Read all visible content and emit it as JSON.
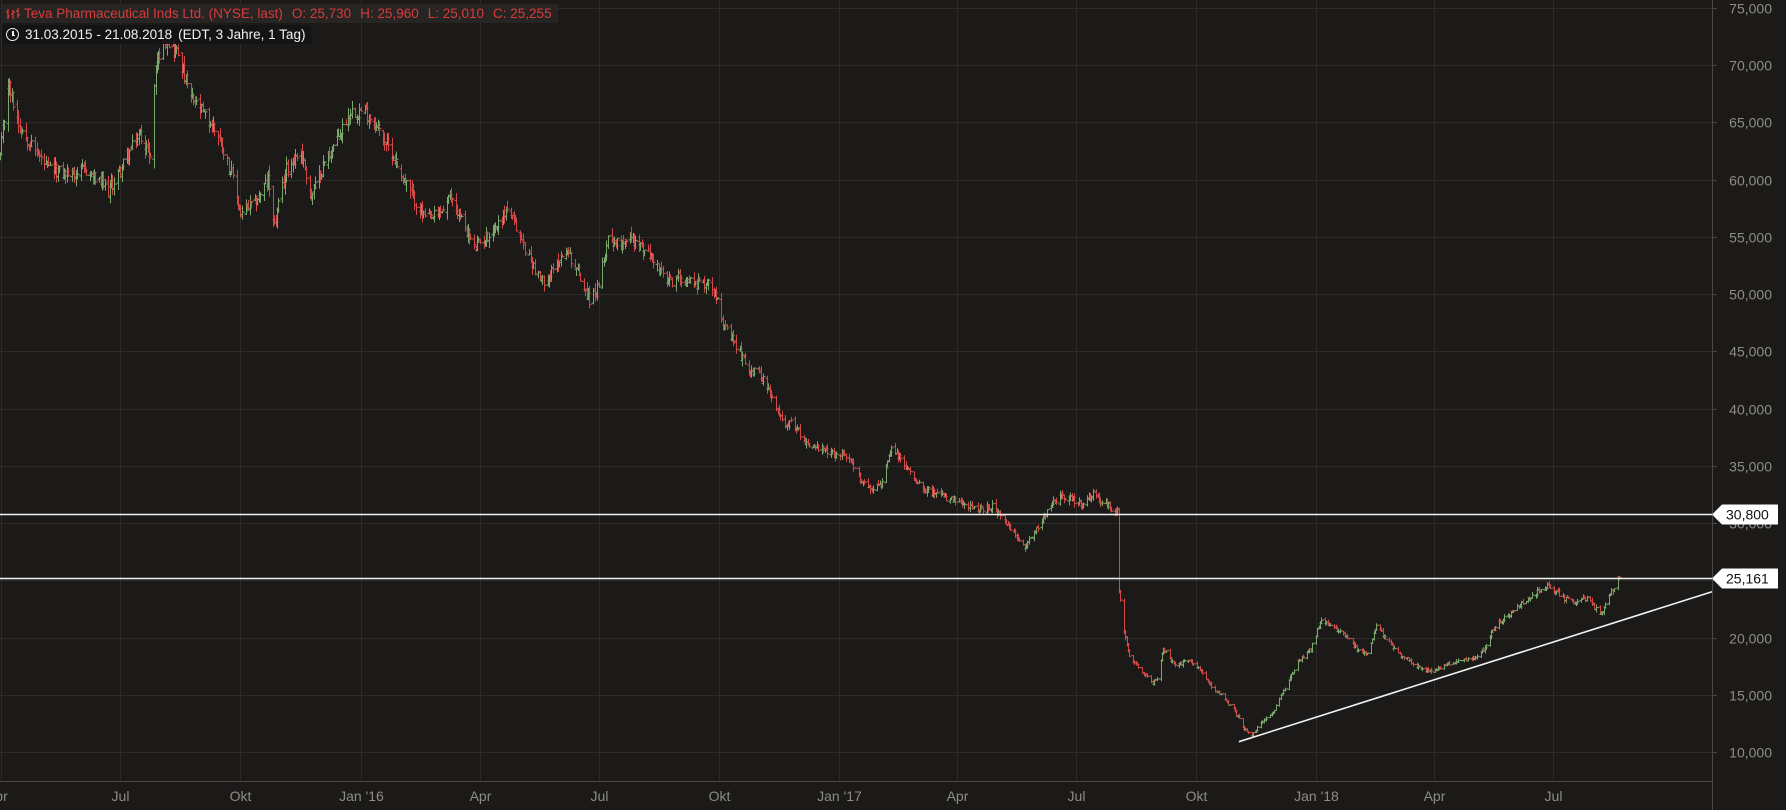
{
  "header": {
    "instrument": "Teva Pharmaceutical Inds Ltd. (NYSE, last)",
    "open": "O: 25,730",
    "high": "H: 25,960",
    "low": "L: 25,010",
    "close": "C: 25,255",
    "date_range": "31.03.2015 - 21.08.2018",
    "settings": "(EDT, 3 Jahre, 1 Tag)",
    "icon": "ohlc-bars-icon"
  },
  "colors": {
    "background": "#1b1a19",
    "grid": "#2c2b29",
    "axis_text": "#8e8c88",
    "up": "#7aa86c",
    "down": "#d04848",
    "header_text": "#d83b3b",
    "lines": "#f2f2f2"
  },
  "chart_data": {
    "type": "ohlc",
    "title": "Teva Pharmaceutical Inds Ltd. (NYSE, last)",
    "x_range": [
      "2015-03-31",
      "2018-08-21"
    ],
    "y_range": [
      5000,
      75000
    ],
    "y_ticks": [
      "10,000",
      "15,000",
      "20,000",
      "25,000",
      "30,000",
      "35,000",
      "40,000",
      "45,000",
      "50,000",
      "55,000",
      "60,000",
      "65,000",
      "70,000",
      "75,000"
    ],
    "x_ticks": [
      {
        "date": "2015-04-01",
        "label": "pr"
      },
      {
        "date": "2015-07-01",
        "label": "Jul"
      },
      {
        "date": "2015-10-01",
        "label": "Okt"
      },
      {
        "date": "2016-01-01",
        "label": "Jan '16"
      },
      {
        "date": "2016-04-01",
        "label": "Apr"
      },
      {
        "date": "2016-07-01",
        "label": "Jul"
      },
      {
        "date": "2016-10-01",
        "label": "Okt"
      },
      {
        "date": "2017-01-01",
        "label": "Jan '17"
      },
      {
        "date": "2017-04-01",
        "label": "Apr"
      },
      {
        "date": "2017-07-01",
        "label": "Jul"
      },
      {
        "date": "2017-10-01",
        "label": "Okt"
      },
      {
        "date": "2018-01-01",
        "label": "Jan '18"
      },
      {
        "date": "2018-04-01",
        "label": "Apr"
      },
      {
        "date": "2018-07-01",
        "label": "Jul"
      }
    ],
    "grid": true,
    "price_path": [
      [
        "2015-03-31",
        62.0
      ],
      [
        "2015-04-06",
        68.5
      ],
      [
        "2015-04-14",
        65.0
      ],
      [
        "2015-04-24",
        63.0
      ],
      [
        "2015-05-06",
        61.0
      ],
      [
        "2015-05-20",
        60.5
      ],
      [
        "2015-06-05",
        60.8
      ],
      [
        "2015-06-22",
        59.0
      ],
      [
        "2015-07-06",
        62.0
      ],
      [
        "2015-07-16",
        64.0
      ],
      [
        "2015-07-24",
        62.0
      ],
      [
        "2015-07-28",
        70.0
      ],
      [
        "2015-08-04",
        72.5
      ],
      [
        "2015-08-14",
        71.0
      ],
      [
        "2015-08-24",
        67.0
      ],
      [
        "2015-09-01",
        66.0
      ],
      [
        "2015-09-14",
        64.0
      ],
      [
        "2015-09-24",
        60.5
      ],
      [
        "2015-10-01",
        57.0
      ],
      [
        "2015-10-12",
        58.0
      ],
      [
        "2015-10-22",
        60.0
      ],
      [
        "2015-10-27",
        56.0
      ],
      [
        "2015-11-05",
        61.0
      ],
      [
        "2015-11-16",
        62.5
      ],
      [
        "2015-11-24",
        58.5
      ],
      [
        "2015-12-04",
        61.5
      ],
      [
        "2015-12-14",
        63.5
      ],
      [
        "2015-12-24",
        66.0
      ],
      [
        "2016-01-04",
        66.0
      ],
      [
        "2016-01-14",
        64.5
      ],
      [
        "2016-01-26",
        62.0
      ],
      [
        "2016-02-03",
        60.0
      ],
      [
        "2016-02-12",
        58.0
      ],
      [
        "2016-02-20",
        56.5
      ],
      [
        "2016-03-01",
        57.0
      ],
      [
        "2016-03-10",
        58.5
      ],
      [
        "2016-03-18",
        56.5
      ],
      [
        "2016-03-28",
        54.0
      ],
      [
        "2016-04-06",
        55.0
      ],
      [
        "2016-04-14",
        56.0
      ],
      [
        "2016-04-22",
        57.5
      ],
      [
        "2016-05-02",
        55.0
      ],
      [
        "2016-05-10",
        53.0
      ],
      [
        "2016-05-18",
        51.0
      ],
      [
        "2016-05-27",
        52.0
      ],
      [
        "2016-06-06",
        54.0
      ],
      [
        "2016-06-15",
        52.0
      ],
      [
        "2016-06-24",
        49.5
      ],
      [
        "2016-07-01",
        50.5
      ],
      [
        "2016-07-08",
        55.0
      ],
      [
        "2016-07-15",
        54.5
      ],
      [
        "2016-07-25",
        55.0
      ],
      [
        "2016-08-03",
        54.0
      ],
      [
        "2016-08-12",
        53.0
      ],
      [
        "2016-08-22",
        51.0
      ],
      [
        "2016-09-01",
        51.5
      ],
      [
        "2016-09-12",
        51.0
      ],
      [
        "2016-09-22",
        51.0
      ],
      [
        "2016-09-30",
        50.0
      ],
      [
        "2016-10-05",
        47.0
      ],
      [
        "2016-10-14",
        45.5
      ],
      [
        "2016-10-24",
        43.5
      ],
      [
        "2016-11-02",
        43.0
      ],
      [
        "2016-11-10",
        41.0
      ],
      [
        "2016-11-18",
        39.0
      ],
      [
        "2016-11-28",
        38.5
      ],
      [
        "2016-12-07",
        37.0
      ],
      [
        "2016-12-16",
        36.5
      ],
      [
        "2016-12-28",
        36.0
      ],
      [
        "2017-01-06",
        36.0
      ],
      [
        "2017-01-16",
        34.0
      ],
      [
        "2017-01-25",
        33.0
      ],
      [
        "2017-02-03",
        33.5
      ],
      [
        "2017-02-10",
        36.5
      ],
      [
        "2017-02-17",
        35.5
      ],
      [
        "2017-02-27",
        34.0
      ],
      [
        "2017-03-08",
        33.0
      ],
      [
        "2017-03-17",
        32.5
      ],
      [
        "2017-03-28",
        32.0
      ],
      [
        "2017-04-07",
        31.5
      ],
      [
        "2017-04-20",
        31.2
      ],
      [
        "2017-04-28",
        31.5
      ],
      [
        "2017-05-08",
        30.0
      ],
      [
        "2017-05-15",
        29.0
      ],
      [
        "2017-05-23",
        28.0
      ],
      [
        "2017-06-01",
        29.5
      ],
      [
        "2017-06-09",
        31.0
      ],
      [
        "2017-06-19",
        32.5
      ],
      [
        "2017-06-29",
        32.0
      ],
      [
        "2017-07-07",
        31.5
      ],
      [
        "2017-07-14",
        32.5
      ],
      [
        "2017-07-25",
        31.5
      ],
      [
        "2017-08-02",
        31.0
      ],
      [
        "2017-08-03",
        24.0
      ],
      [
        "2017-08-07",
        20.5
      ],
      [
        "2017-08-11",
        18.5
      ],
      [
        "2017-08-21",
        17.0
      ],
      [
        "2017-08-29",
        16.0
      ],
      [
        "2017-09-01",
        16.5
      ],
      [
        "2017-09-06",
        19.0
      ],
      [
        "2017-09-15",
        17.5
      ],
      [
        "2017-09-25",
        18.0
      ],
      [
        "2017-10-02",
        17.5
      ],
      [
        "2017-10-11",
        16.0
      ],
      [
        "2017-10-20",
        15.0
      ],
      [
        "2017-10-31",
        13.5
      ],
      [
        "2017-11-07",
        12.0
      ],
      [
        "2017-11-13",
        11.5
      ],
      [
        "2017-11-20",
        12.5
      ],
      [
        "2017-11-29",
        13.5
      ],
      [
        "2017-12-08",
        15.5
      ],
      [
        "2017-12-18",
        18.0
      ],
      [
        "2017-12-28",
        19.0
      ],
      [
        "2018-01-05",
        21.5
      ],
      [
        "2018-01-12",
        21.0
      ],
      [
        "2018-01-22",
        20.5
      ],
      [
        "2018-02-01",
        19.0
      ],
      [
        "2018-02-09",
        18.5
      ],
      [
        "2018-02-16",
        21.0
      ],
      [
        "2018-02-26",
        19.5
      ],
      [
        "2018-03-07",
        18.5
      ],
      [
        "2018-03-19",
        17.5
      ],
      [
        "2018-03-30",
        17.0
      ],
      [
        "2018-04-09",
        17.5
      ],
      [
        "2018-04-19",
        18.0
      ],
      [
        "2018-04-30",
        18.0
      ],
      [
        "2018-05-09",
        19.0
      ],
      [
        "2018-05-18",
        21.0
      ],
      [
        "2018-05-29",
        22.0
      ],
      [
        "2018-06-08",
        23.0
      ],
      [
        "2018-06-19",
        24.0
      ],
      [
        "2018-06-28",
        24.5
      ],
      [
        "2018-07-09",
        23.5
      ],
      [
        "2018-07-18",
        23.0
      ],
      [
        "2018-07-27",
        23.5
      ],
      [
        "2018-08-06",
        22.0
      ],
      [
        "2018-08-13",
        23.5
      ],
      [
        "2018-08-21",
        25.3
      ]
    ],
    "horizontal_lines": [
      {
        "value": 30800,
        "label": "30,800"
      },
      {
        "value": 25161,
        "label": "25,161"
      }
    ],
    "trendline": {
      "start": {
        "date": "2017-11-03",
        "value": 10900
      },
      "end": {
        "date": "2018-10-31",
        "value": 24000
      }
    }
  }
}
